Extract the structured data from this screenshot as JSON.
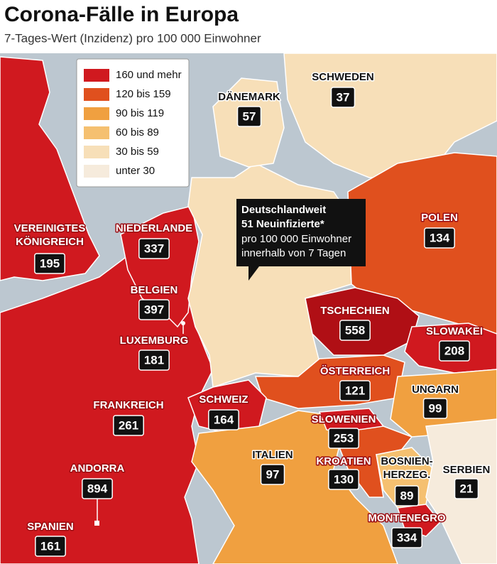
{
  "header": {
    "title": "Corona-Fälle in Europa",
    "subtitle": "7-Tages-Wert (Inzidenz) pro 100 000 Einwohner"
  },
  "legend": [
    {
      "label": "160 und mehr",
      "color": "#d0191f"
    },
    {
      "label": "120 bis 159",
      "color": "#e0501e"
    },
    {
      "label": "90 bis 119",
      "color": "#f0a040"
    },
    {
      "label": "60 bis 89",
      "color": "#f5c070"
    },
    {
      "label": "30 bis 59",
      "color": "#f7dfb8"
    },
    {
      "label": "unter 30",
      "color": "#f6ebdc"
    }
  ],
  "callout": {
    "lines": [
      "Deutschlandweit",
      "51 Neuinfizierte*",
      "pro 100 000 Einwohner",
      "innerhalb von 7 Tagen"
    ]
  },
  "countries": [
    {
      "name": [
        "SCHWEDEN"
      ],
      "value": 37
    },
    {
      "name": [
        "DÄNEMARK"
      ],
      "value": 57
    },
    {
      "name": [
        "VEREINIGTES",
        "KÖNIGREICH"
      ],
      "value": 195
    },
    {
      "name": [
        "NIEDERLANDE"
      ],
      "value": 337
    },
    {
      "name": [
        "BELGIEN"
      ],
      "value": 397
    },
    {
      "name": [
        "LUXEMBURG"
      ],
      "value": 181
    },
    {
      "name": [
        "FRANKREICH"
      ],
      "value": 261
    },
    {
      "name": [
        "ANDORRA"
      ],
      "value": 894
    },
    {
      "name": [
        "SPANIEN"
      ],
      "value": 161
    },
    {
      "name": [
        "POLEN"
      ],
      "value": 134
    },
    {
      "name": [
        "TSCHECHIEN"
      ],
      "value": 558
    },
    {
      "name": [
        "SLOWAKEI"
      ],
      "value": 208
    },
    {
      "name": [
        "ÖSTERREICH"
      ],
      "value": 121
    },
    {
      "name": [
        "SCHWEIZ"
      ],
      "value": 164
    },
    {
      "name": [
        "UNGARN"
      ],
      "value": 99
    },
    {
      "name": [
        "SLOWENIEN"
      ],
      "value": 253
    },
    {
      "name": [
        "ITALIEN"
      ],
      "value": 97
    },
    {
      "name": [
        "KROATIEN"
      ],
      "value": 130
    },
    {
      "name": [
        "BOSNIEN-",
        "HERZEG."
      ],
      "value": 89
    },
    {
      "name": [
        "SERBIEN"
      ],
      "value": 21
    },
    {
      "name": [
        "MONTENEGRO"
      ],
      "value": 334
    }
  ]
}
